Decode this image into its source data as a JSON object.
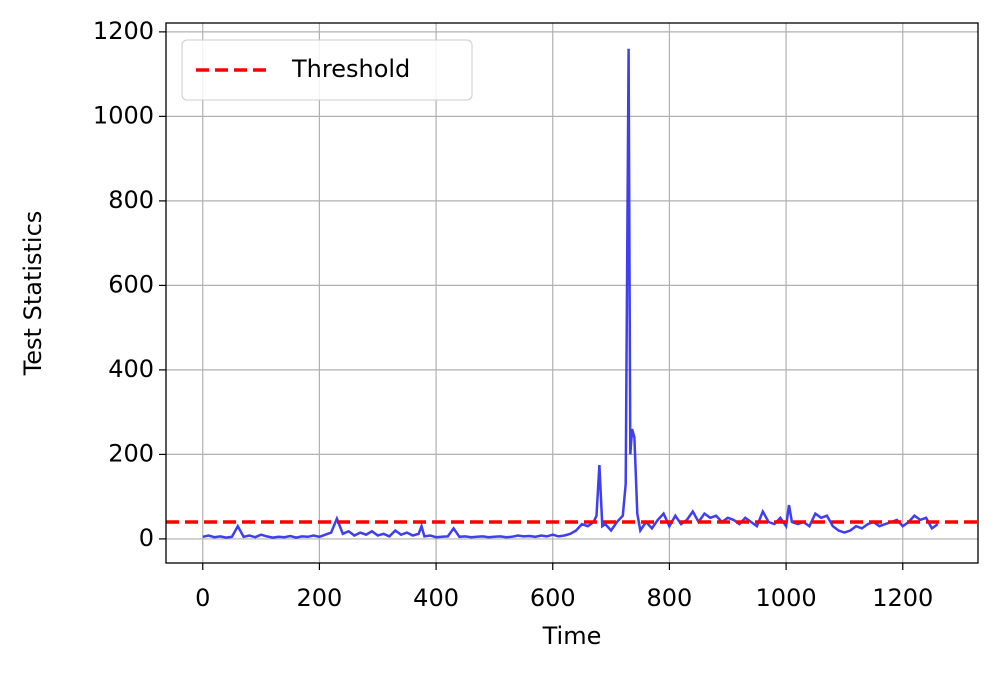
{
  "chart_data": {
    "type": "line",
    "xlabel": "Time",
    "ylabel": "Test Statistics",
    "x": [
      0,
      10,
      20,
      30,
      40,
      50,
      60,
      70,
      80,
      90,
      100,
      110,
      120,
      130,
      140,
      150,
      160,
      170,
      180,
      190,
      200,
      210,
      220,
      230,
      240,
      250,
      260,
      270,
      280,
      290,
      300,
      310,
      320,
      330,
      340,
      350,
      360,
      370,
      375,
      380,
      390,
      400,
      410,
      420,
      430,
      440,
      450,
      460,
      470,
      480,
      490,
      500,
      510,
      520,
      530,
      540,
      550,
      560,
      570,
      580,
      590,
      600,
      610,
      620,
      630,
      640,
      650,
      660,
      670,
      675,
      680,
      685,
      690,
      700,
      710,
      720,
      725,
      730,
      733,
      736,
      740,
      745,
      750,
      760,
      770,
      780,
      790,
      800,
      810,
      820,
      830,
      840,
      850,
      860,
      870,
      880,
      890,
      900,
      910,
      920,
      930,
      940,
      950,
      960,
      970,
      980,
      990,
      1000,
      1005,
      1010,
      1020,
      1030,
      1040,
      1050,
      1060,
      1070,
      1080,
      1090,
      1100,
      1110,
      1120,
      1130,
      1140,
      1150,
      1160,
      1170,
      1180,
      1190,
      1200,
      1210,
      1220,
      1230,
      1240,
      1250,
      1260
    ],
    "values": [
      5,
      8,
      4,
      6,
      3,
      5,
      30,
      5,
      8,
      4,
      10,
      6,
      3,
      5,
      4,
      7,
      3,
      6,
      5,
      8,
      5,
      10,
      15,
      48,
      12,
      18,
      8,
      15,
      10,
      18,
      8,
      12,
      6,
      20,
      10,
      15,
      8,
      12,
      30,
      6,
      8,
      4,
      5,
      6,
      25,
      5,
      6,
      4,
      5,
      6,
      4,
      5,
      6,
      4,
      5,
      8,
      6,
      7,
      5,
      8,
      6,
      10,
      6,
      8,
      12,
      20,
      35,
      30,
      40,
      55,
      175,
      30,
      35,
      20,
      40,
      55,
      130,
      1160,
      200,
      260,
      240,
      60,
      20,
      40,
      25,
      45,
      60,
      30,
      55,
      35,
      45,
      65,
      40,
      60,
      50,
      55,
      40,
      50,
      45,
      35,
      50,
      40,
      30,
      65,
      40,
      35,
      50,
      30,
      80,
      40,
      35,
      40,
      30,
      60,
      50,
      55,
      30,
      20,
      15,
      20,
      30,
      25,
      35,
      40,
      30,
      35,
      40,
      45,
      30,
      40,
      55,
      45,
      50,
      25,
      35
    ],
    "color": "#3535f0",
    "threshold": {
      "name": "Threshold",
      "value": 40,
      "color": "#ff0000"
    },
    "xlim": [
      -63,
      1329
    ],
    "ylim": [
      -57,
      1221
    ],
    "xticks": [
      0,
      200,
      400,
      600,
      800,
      1000,
      1200
    ],
    "yticks": [
      0,
      200,
      400,
      600,
      800,
      1000,
      1200
    ],
    "grid": true,
    "legend": "upper left"
  }
}
